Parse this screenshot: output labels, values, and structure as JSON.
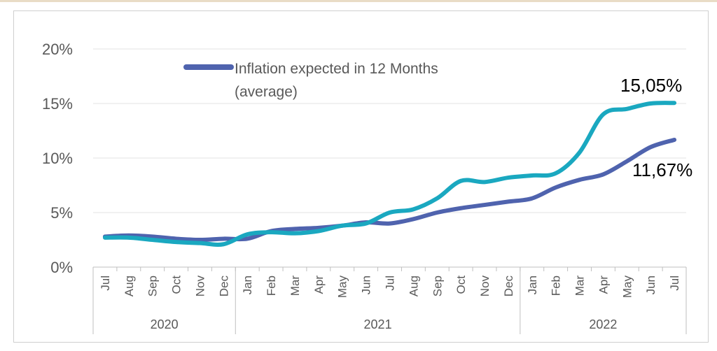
{
  "chart_data": {
    "type": "line",
    "title": "",
    "xlabel": "",
    "ylabel": "",
    "ylim": [
      0,
      20
    ],
    "y_ticks": [
      "0%",
      "5%",
      "10%",
      "15%",
      "20%"
    ],
    "categories": [
      "Jul",
      "Aug",
      "Sep",
      "Oct",
      "Nov",
      "Dec",
      "Jan",
      "Feb",
      "Mar",
      "Apr",
      "May",
      "Jun",
      "Jul",
      "Aug",
      "Sep",
      "Oct",
      "Nov",
      "Dec",
      "Jan",
      "Feb",
      "Mar",
      "Apr",
      "May",
      "Jun",
      "Jul"
    ],
    "year_labels": [
      {
        "label": "2020",
        "start_index": 0,
        "end_index": 5
      },
      {
        "label": "2021",
        "start_index": 6,
        "end_index": 17
      },
      {
        "label": "2022",
        "start_index": 18,
        "end_index": 24
      }
    ],
    "grid": true,
    "legend_position": "top-left",
    "series": [
      {
        "name": "Inflation expected in 12 Months (average)",
        "legend_lines": [
          "Inflation expected in 12 Months",
          "(average)"
        ],
        "color": "#4f63ae",
        "values": [
          2.8,
          2.9,
          2.8,
          2.6,
          2.5,
          2.6,
          2.6,
          3.3,
          3.5,
          3.6,
          3.8,
          4.1,
          4.0,
          4.4,
          5.0,
          5.4,
          5.7,
          6.0,
          6.3,
          7.3,
          8.0,
          8.5,
          9.7,
          11.0,
          11.67
        ],
        "end_label": "11,67%"
      },
      {
        "name": "",
        "color": "#1aa8c0",
        "values": [
          2.7,
          2.7,
          2.5,
          2.3,
          2.2,
          2.1,
          3.0,
          3.2,
          3.1,
          3.3,
          3.8,
          4.0,
          5.0,
          5.3,
          6.3,
          7.9,
          7.8,
          8.2,
          8.4,
          8.6,
          10.5,
          14.0,
          14.5,
          15.0,
          15.05
        ],
        "end_label": "15,05%"
      }
    ]
  }
}
